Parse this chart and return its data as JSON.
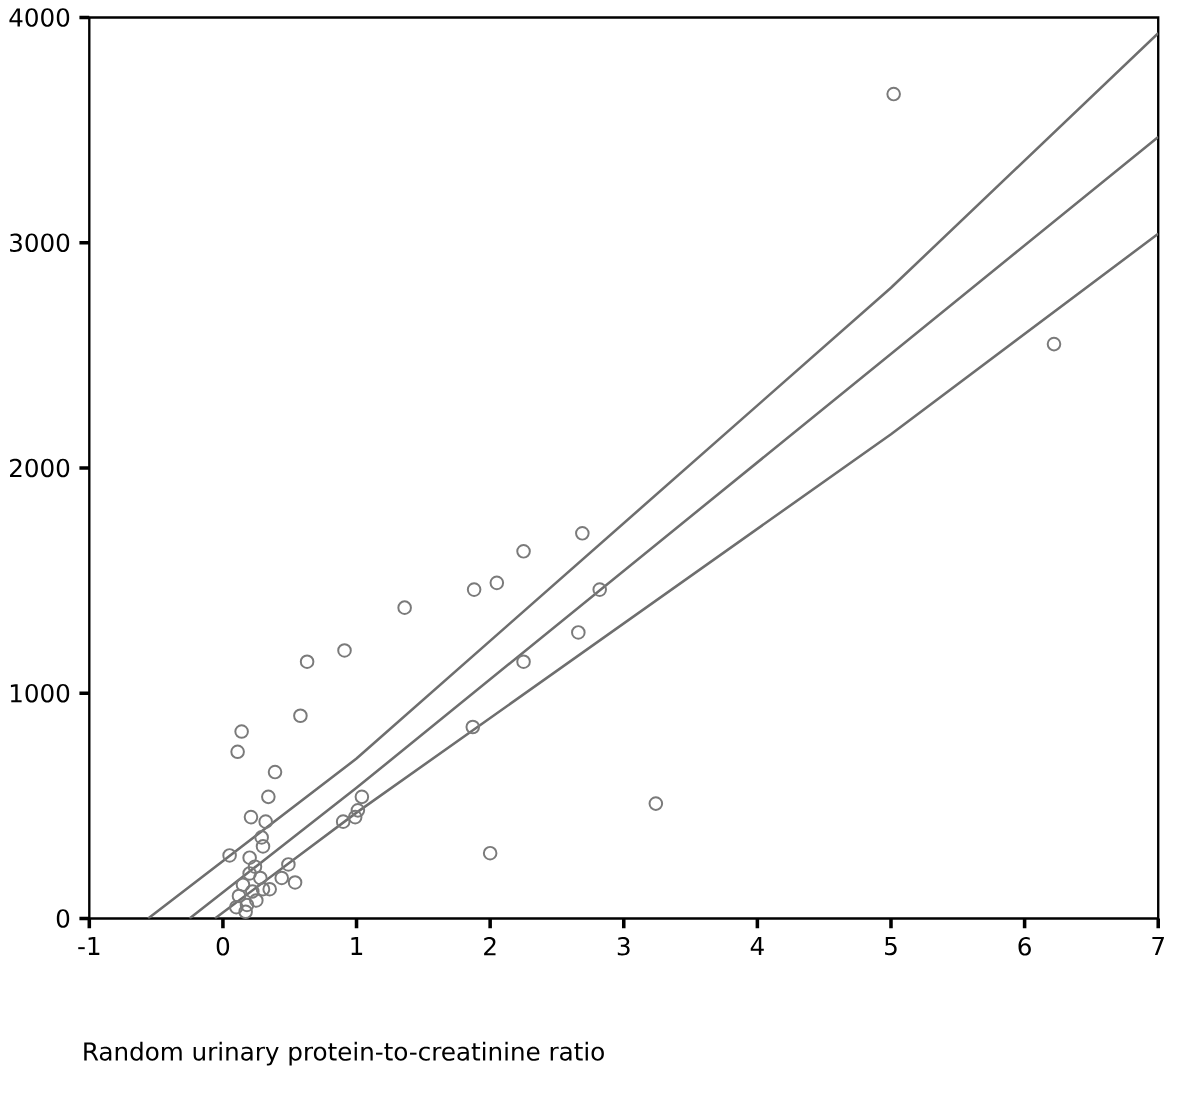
{
  "chart_data": {
    "type": "scatter",
    "xlabel": "Random urinary protein-to-creatinine ratio",
    "xlim": [
      -1,
      7
    ],
    "ylim": [
      0,
      4000
    ],
    "xticks": [
      -1,
      0,
      1,
      2,
      3,
      4,
      5,
      6,
      7
    ],
    "yticks": [
      0,
      1000,
      2000,
      3000,
      4000
    ],
    "grid": false,
    "marker": "circle",
    "series": [
      {
        "type": "scatter",
        "color": "#7a7a7a",
        "x": [
          5.02,
          6.22,
          1.36,
          1.88,
          2.05,
          0.63,
          0.91,
          0.14,
          0.11,
          0.58,
          0.39,
          0.34,
          0.21,
          0.32,
          0.05,
          0.2,
          0.3,
          0.29,
          0.49,
          0.54,
          0.44,
          0.35,
          0.12,
          0.15,
          0.18,
          0.2,
          0.22,
          0.25,
          0.28,
          0.1,
          0.3,
          0.17,
          0.24,
          0.9,
          1.01,
          1.04,
          0.99,
          1.87,
          2.0,
          2.25,
          2.66,
          2.82,
          2.69,
          2.25,
          3.24
        ],
        "values": [
          3660,
          2550,
          1380,
          1460,
          1490,
          1140,
          1190,
          830,
          740,
          900,
          650,
          540,
          450,
          430,
          280,
          270,
          320,
          360,
          240,
          160,
          180,
          130,
          100,
          150,
          60,
          200,
          120,
          80,
          180,
          50,
          130,
          30,
          230,
          430,
          480,
          540,
          450,
          850,
          290,
          1140,
          1270,
          1460,
          1710,
          1630,
          510
        ]
      },
      {
        "type": "line",
        "marker": "none",
        "color": "#6e6e6e",
        "x": [
          -0.56,
          1,
          5,
          7
        ],
        "values": [
          0,
          710,
          2800,
          3930
        ]
      },
      {
        "type": "line",
        "marker": "none",
        "color": "#6e6e6e",
        "x": [
          -0.25,
          1,
          7
        ],
        "values": [
          0,
          580,
          3470
        ]
      },
      {
        "type": "line",
        "marker": "none",
        "color": "#6e6e6e",
        "x": [
          -0.06,
          1,
          5,
          7
        ],
        "values": [
          0,
          470,
          2150,
          3040
        ]
      }
    ]
  }
}
